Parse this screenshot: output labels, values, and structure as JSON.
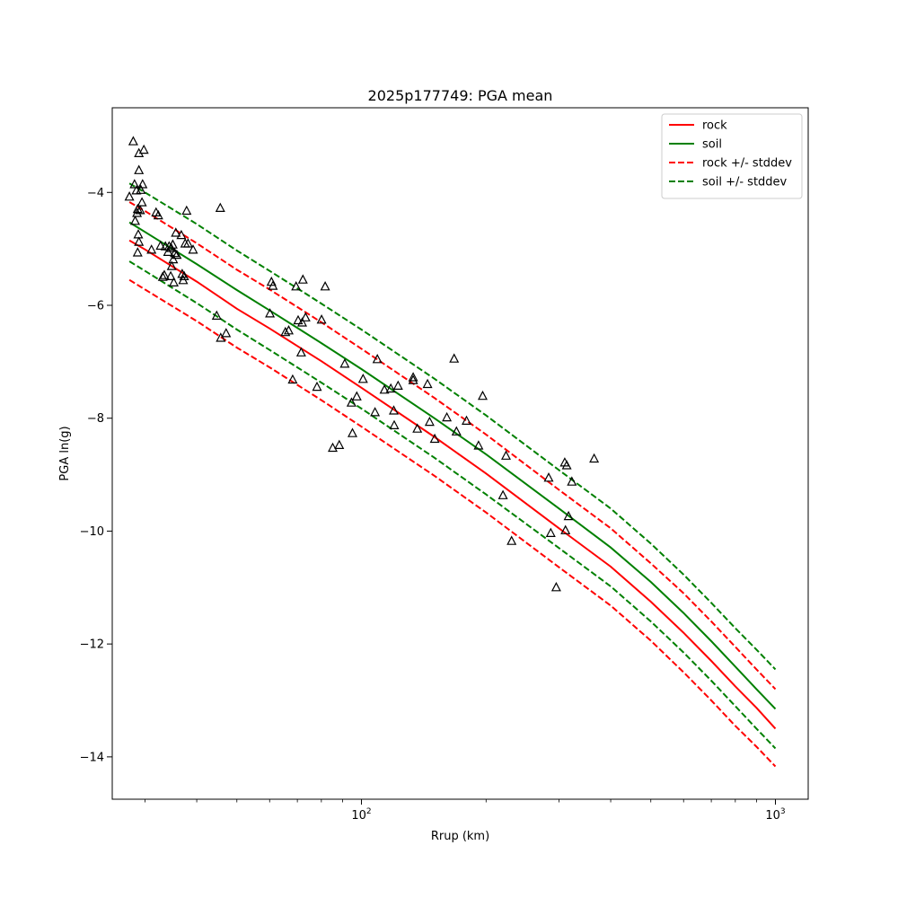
{
  "chart_data": {
    "type": "scatter",
    "title": "2025p177749: PGA mean",
    "xlabel": "Rrup (km)",
    "ylabel": "PGA ln(g)",
    "xscale": "log",
    "xlim": [
      25,
      1200
    ],
    "ylim": [
      -14.75,
      -2.5
    ],
    "x_ticks": [
      {
        "value": 100,
        "base": "10",
        "exp": "2"
      },
      {
        "value": 1000,
        "base": "10",
        "exp": "3"
      }
    ],
    "y_ticks": [
      {
        "value": -4,
        "label": "−4"
      },
      {
        "value": -6,
        "label": "−6"
      },
      {
        "value": -8,
        "label": "−8"
      },
      {
        "value": -10,
        "label": "−10"
      },
      {
        "value": -12,
        "label": "−12"
      },
      {
        "value": -14,
        "label": "−14"
      }
    ],
    "grid": false,
    "legend_position": "top-right",
    "series": [
      {
        "name": "rock",
        "kind": "line",
        "style": "solid",
        "color": "#ff0000",
        "x": [
          27.5,
          30,
          40,
          50,
          60,
          70,
          80,
          100,
          150,
          200,
          300,
          400,
          500,
          600,
          700,
          800,
          900,
          1000
        ],
        "y": [
          -4.85,
          -5.01,
          -5.58,
          -6.06,
          -6.41,
          -6.72,
          -6.99,
          -7.46,
          -8.33,
          -8.98,
          -9.95,
          -10.63,
          -11.25,
          -11.8,
          -12.3,
          -12.75,
          -13.13,
          -13.5
        ]
      },
      {
        "name": "soil",
        "kind": "line",
        "style": "solid",
        "color": "#008000",
        "x": [
          27.5,
          30,
          40,
          50,
          60,
          70,
          80,
          100,
          150,
          200,
          300,
          400,
          500,
          600,
          700,
          800,
          900,
          1000
        ],
        "y": [
          -4.53,
          -4.7,
          -5.27,
          -5.73,
          -6.09,
          -6.4,
          -6.67,
          -7.13,
          -8.0,
          -8.64,
          -9.6,
          -10.29,
          -10.9,
          -11.45,
          -11.95,
          -12.4,
          -12.8,
          -13.15
        ]
      },
      {
        "name": "rock +/- stddev",
        "kind": "line",
        "style": "dashed",
        "color": "#ff0000",
        "x": [
          27.5,
          30,
          40,
          50,
          60,
          70,
          80,
          100,
          150,
          200,
          300,
          400,
          500,
          600,
          700,
          800,
          900,
          1000
        ],
        "y": [
          -4.17,
          -4.33,
          -4.9,
          -5.37,
          -5.72,
          -6.03,
          -6.3,
          -6.77,
          -7.64,
          -8.29,
          -9.27,
          -9.95,
          -10.57,
          -11.1,
          -11.6,
          -12.05,
          -12.45,
          -12.8
        ]
      },
      {
        "name": "",
        "kind": "line",
        "style": "dashed",
        "color": "#ff0000",
        "x": [
          27.5,
          30,
          40,
          50,
          60,
          70,
          80,
          100,
          150,
          200,
          300,
          400,
          500,
          600,
          700,
          800,
          900,
          1000
        ],
        "y": [
          -5.55,
          -5.72,
          -6.28,
          -6.75,
          -7.1,
          -7.41,
          -7.68,
          -8.15,
          -9.02,
          -9.67,
          -10.64,
          -11.32,
          -11.94,
          -12.5,
          -13.0,
          -13.45,
          -13.82,
          -14.17
        ]
      },
      {
        "name": "soil +/- stddev",
        "kind": "line",
        "style": "dashed",
        "color": "#008000",
        "x": [
          27.5,
          30,
          40,
          50,
          60,
          70,
          80,
          100,
          150,
          200,
          300,
          400,
          500,
          600,
          700,
          800,
          900,
          1000
        ],
        "y": [
          -3.84,
          -4.0,
          -4.56,
          -5.03,
          -5.39,
          -5.7,
          -5.97,
          -6.43,
          -7.3,
          -7.95,
          -8.92,
          -9.6,
          -10.22,
          -10.77,
          -11.27,
          -11.72,
          -12.1,
          -12.45
        ]
      },
      {
        "name": "",
        "kind": "line",
        "style": "dashed",
        "color": "#008000",
        "x": [
          27.5,
          30,
          40,
          50,
          60,
          70,
          80,
          100,
          150,
          200,
          300,
          400,
          500,
          600,
          700,
          800,
          900,
          1000
        ],
        "y": [
          -5.22,
          -5.39,
          -5.96,
          -6.43,
          -6.79,
          -7.1,
          -7.37,
          -7.83,
          -8.7,
          -9.35,
          -10.3,
          -10.98,
          -11.6,
          -12.15,
          -12.65,
          -13.1,
          -13.5,
          -13.85
        ]
      },
      {
        "name": "",
        "kind": "scatter",
        "marker": "triangle",
        "color": "#000000",
        "points": [
          [
            27.5,
            -4.08
          ],
          [
            28.1,
            -3.1
          ],
          [
            28.3,
            -3.86
          ],
          [
            28.4,
            -4.51
          ],
          [
            28.6,
            -3.97
          ],
          [
            28.7,
            -4.37
          ],
          [
            28.8,
            -4.3
          ],
          [
            28.8,
            -5.07
          ],
          [
            28.9,
            -4.75
          ],
          [
            29.0,
            -3.31
          ],
          [
            29.0,
            -3.61
          ],
          [
            29.0,
            -4.88
          ],
          [
            29.2,
            -4.32
          ],
          [
            29.3,
            -3.96
          ],
          [
            29.5,
            -4.18
          ],
          [
            29.6,
            -3.86
          ],
          [
            29.8,
            -3.25
          ],
          [
            31.1,
            -5.02
          ],
          [
            31.9,
            -4.36
          ],
          [
            32.3,
            -4.41
          ],
          [
            32.7,
            -4.95
          ],
          [
            33.1,
            -5.5
          ],
          [
            33.4,
            -5.47
          ],
          [
            33.6,
            -4.96
          ],
          [
            34.1,
            -5.06
          ],
          [
            34.3,
            -4.96
          ],
          [
            34.6,
            -5.49
          ],
          [
            34.7,
            -4.99
          ],
          [
            34.8,
            -5.31
          ],
          [
            35.0,
            -4.93
          ],
          [
            35.1,
            -5.19
          ],
          [
            35.2,
            -5.6
          ],
          [
            35.4,
            -5.08
          ],
          [
            35.6,
            -4.72
          ],
          [
            35.8,
            -5.11
          ],
          [
            36.7,
            -4.76
          ],
          [
            36.9,
            -5.45
          ],
          [
            37.1,
            -5.56
          ],
          [
            37.3,
            -5.49
          ],
          [
            37.5,
            -4.91
          ],
          [
            37.8,
            -4.33
          ],
          [
            38.1,
            -4.91
          ],
          [
            39.2,
            -5.02
          ],
          [
            44.7,
            -6.19
          ],
          [
            45.6,
            -4.28
          ],
          [
            45.7,
            -6.58
          ],
          [
            47.1,
            -6.5
          ],
          [
            60.1,
            -6.15
          ],
          [
            60.6,
            -5.59
          ],
          [
            61.1,
            -5.66
          ],
          [
            65.5,
            -6.48
          ],
          [
            66.7,
            -6.45
          ],
          [
            68.2,
            -7.32
          ],
          [
            69.5,
            -5.67
          ],
          [
            70.3,
            -6.27
          ],
          [
            71.5,
            -6.84
          ],
          [
            71.9,
            -6.31
          ],
          [
            72.2,
            -5.55
          ],
          [
            73.3,
            -6.22
          ],
          [
            78.1,
            -7.45
          ],
          [
            80.1,
            -6.26
          ],
          [
            81.7,
            -5.67
          ],
          [
            85.2,
            -8.53
          ],
          [
            88.4,
            -8.48
          ],
          [
            91.1,
            -7.04
          ],
          [
            94.6,
            -7.73
          ],
          [
            95.1,
            -8.27
          ],
          [
            97.4,
            -7.62
          ],
          [
            100.9,
            -7.31
          ],
          [
            107.8,
            -7.9
          ],
          [
            109.2,
            -6.96
          ],
          [
            113.6,
            -7.5
          ],
          [
            117.7,
            -7.48
          ],
          [
            119.7,
            -7.87
          ],
          [
            120.0,
            -8.13
          ],
          [
            122.6,
            -7.43
          ],
          [
            133.3,
            -7.33
          ],
          [
            133.3,
            -7.28
          ],
          [
            136.4,
            -8.19
          ],
          [
            144.4,
            -7.4
          ],
          [
            146.1,
            -8.07
          ],
          [
            150.3,
            -8.37
          ],
          [
            160.8,
            -7.99
          ],
          [
            167.4,
            -6.95
          ],
          [
            169.6,
            -8.24
          ],
          [
            179.4,
            -8.05
          ],
          [
            191.8,
            -8.49
          ],
          [
            196.2,
            -7.61
          ],
          [
            219.7,
            -9.37
          ],
          [
            223.5,
            -8.67
          ],
          [
            230.5,
            -10.18
          ],
          [
            283.3,
            -9.06
          ],
          [
            286.6,
            -10.04
          ],
          [
            295.5,
            -11.0
          ],
          [
            309.8,
            -8.79
          ],
          [
            311.0,
            -9.99
          ],
          [
            313.2,
            -8.84
          ],
          [
            316.3,
            -9.74
          ],
          [
            322.2,
            -9.13
          ],
          [
            364.8,
            -8.72
          ]
        ]
      }
    ]
  }
}
